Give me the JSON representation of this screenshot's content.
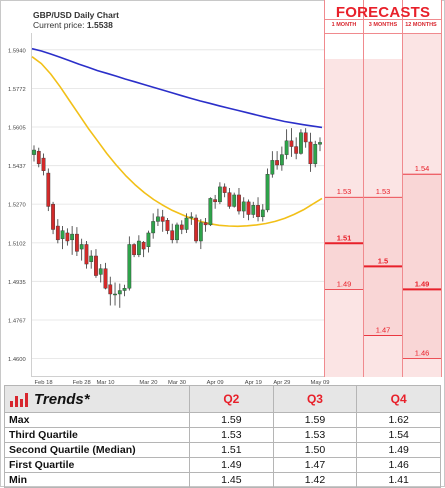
{
  "header": {
    "title": "GBP/USD Daily Chart",
    "price_label": "Current price:",
    "price_value": "1.5538"
  },
  "forecasts": {
    "title": "FORECASTS",
    "columns": [
      "1 MONTH",
      "3 MONTHS",
      "12 MONTHS"
    ],
    "fill_color": "#fbe4e4",
    "accent_color": "#e8202a"
  },
  "trends_table": {
    "title": "Trends*",
    "icon": "bar-chart-icon",
    "headers": [
      "Q2",
      "Q3",
      "Q4"
    ],
    "rows": [
      {
        "label": "Max",
        "values": [
          "1.59",
          "1.59",
          "1.62"
        ]
      },
      {
        "label": "Third Quartile",
        "values": [
          "1.53",
          "1.53",
          "1.54"
        ]
      },
      {
        "label": "Second Quartile (Median)",
        "values": [
          "1.51",
          "1.50",
          "1.49"
        ]
      },
      {
        "label": "First Quartile",
        "values": [
          "1.49",
          "1.47",
          "1.46"
        ]
      },
      {
        "label": "Min",
        "values": [
          "1.45",
          "1.42",
          "1.41"
        ]
      }
    ]
  },
  "chart_data": [
    {
      "type": "candlestick",
      "title": "GBP/USD Daily Chart",
      "subtitle": "Current price: 1.5538",
      "x_tick_labels": [
        "Feb 18",
        "Feb 28",
        "Mar 10",
        "Mar 20",
        "Mar 30",
        "Apr 09",
        "Apr 19",
        "Apr 29",
        "May 09"
      ],
      "y_ticks": [
        1.46,
        1.4767,
        1.4935,
        1.5102,
        1.527,
        1.5437,
        1.5605,
        1.5772,
        1.594
      ],
      "ylim": [
        1.455,
        1.6
      ],
      "up_color": "#2ea34a",
      "down_color": "#d32a2a",
      "candles": [
        {
          "date": "Feb 14",
          "o": 1.5485,
          "h": 1.5525,
          "l": 1.5455,
          "c": 1.5505
        },
        {
          "date": "Feb 15",
          "o": 1.55,
          "h": 1.5515,
          "l": 1.543,
          "c": 1.5445
        },
        {
          "date": "Feb 18",
          "o": 1.547,
          "h": 1.549,
          "l": 1.5395,
          "c": 1.5415
        },
        {
          "date": "Feb 19",
          "o": 1.5405,
          "h": 1.5425,
          "l": 1.524,
          "c": 1.526
        },
        {
          "date": "Feb 20",
          "o": 1.527,
          "h": 1.528,
          "l": 1.514,
          "c": 1.516
        },
        {
          "date": "Feb 21",
          "o": 1.5175,
          "h": 1.5205,
          "l": 1.51,
          "c": 1.5115
        },
        {
          "date": "Feb 22",
          "o": 1.512,
          "h": 1.5175,
          "l": 1.5075,
          "c": 1.5155
        },
        {
          "date": "Feb 25",
          "o": 1.5145,
          "h": 1.5165,
          "l": 1.509,
          "c": 1.511
        },
        {
          "date": "Feb 26",
          "o": 1.5115,
          "h": 1.5175,
          "l": 1.505,
          "c": 1.514
        },
        {
          "date": "Feb 27",
          "o": 1.514,
          "h": 1.517,
          "l": 1.5045,
          "c": 1.5065
        },
        {
          "date": "Feb 28",
          "o": 1.5075,
          "h": 1.512,
          "l": 1.5025,
          "c": 1.5095
        },
        {
          "date": "Mar 01",
          "o": 1.5095,
          "h": 1.511,
          "l": 1.499,
          "c": 1.501
        },
        {
          "date": "Mar 04",
          "o": 1.502,
          "h": 1.507,
          "l": 1.499,
          "c": 1.5045
        },
        {
          "date": "Mar 05",
          "o": 1.5045,
          "h": 1.5075,
          "l": 1.495,
          "c": 1.496
        },
        {
          "date": "Mar 06",
          "o": 1.4965,
          "h": 1.501,
          "l": 1.493,
          "c": 1.499
        },
        {
          "date": "Mar 07",
          "o": 1.499,
          "h": 1.5015,
          "l": 1.49,
          "c": 1.4905
        },
        {
          "date": "Mar 08",
          "o": 1.492,
          "h": 1.4955,
          "l": 1.483,
          "c": 1.488
        },
        {
          "date": "Mar 11",
          "o": 1.488,
          "h": 1.493,
          "l": 1.483,
          "c": 1.488
        },
        {
          "date": "Mar 12",
          "o": 1.488,
          "h": 1.4925,
          "l": 1.482,
          "c": 1.4895
        },
        {
          "date": "Mar 13",
          "o": 1.4895,
          "h": 1.492,
          "l": 1.487,
          "c": 1.4905
        },
        {
          "date": "Mar 14",
          "o": 1.4905,
          "h": 1.513,
          "l": 1.4895,
          "c": 1.5095
        },
        {
          "date": "Mar 15",
          "o": 1.5095,
          "h": 1.51,
          "l": 1.504,
          "c": 1.505
        },
        {
          "date": "Mar 18",
          "o": 1.505,
          "h": 1.5135,
          "l": 1.504,
          "c": 1.511
        },
        {
          "date": "Mar 19",
          "o": 1.5105,
          "h": 1.511,
          "l": 1.504,
          "c": 1.5075
        },
        {
          "date": "Mar 20",
          "o": 1.5085,
          "h": 1.5155,
          "l": 1.506,
          "c": 1.5145
        },
        {
          "date": "Mar 21",
          "o": 1.5145,
          "h": 1.523,
          "l": 1.512,
          "c": 1.5195
        },
        {
          "date": "Mar 22",
          "o": 1.5195,
          "h": 1.525,
          "l": 1.5175,
          "c": 1.5215
        },
        {
          "date": "Mar 25",
          "o": 1.5215,
          "h": 1.5245,
          "l": 1.515,
          "c": 1.5195
        },
        {
          "date": "Mar 26",
          "o": 1.52,
          "h": 1.521,
          "l": 1.514,
          "c": 1.5155
        },
        {
          "date": "Mar 27",
          "o": 1.5155,
          "h": 1.5185,
          "l": 1.51,
          "c": 1.5115
        },
        {
          "date": "Mar 28",
          "o": 1.5115,
          "h": 1.519,
          "l": 1.51,
          "c": 1.518
        },
        {
          "date": "Mar 29",
          "o": 1.518,
          "h": 1.52,
          "l": 1.514,
          "c": 1.516
        },
        {
          "date": "Apr 01",
          "o": 1.516,
          "h": 1.523,
          "l": 1.5145,
          "c": 1.521
        },
        {
          "date": "Apr 02",
          "o": 1.521,
          "h": 1.5235,
          "l": 1.518,
          "c": 1.5215
        },
        {
          "date": "Apr 03",
          "o": 1.521,
          "h": 1.5225,
          "l": 1.51,
          "c": 1.511
        },
        {
          "date": "Apr 04",
          "o": 1.511,
          "h": 1.5205,
          "l": 1.5075,
          "c": 1.519
        },
        {
          "date": "Apr 05",
          "o": 1.519,
          "h": 1.521,
          "l": 1.515,
          "c": 1.518
        },
        {
          "date": "Apr 08",
          "o": 1.518,
          "h": 1.53,
          "l": 1.5175,
          "c": 1.5295
        },
        {
          "date": "Apr 09",
          "o": 1.529,
          "h": 1.531,
          "l": 1.525,
          "c": 1.528
        },
        {
          "date": "Apr 10",
          "o": 1.528,
          "h": 1.5365,
          "l": 1.527,
          "c": 1.5345
        },
        {
          "date": "Apr 11",
          "o": 1.5345,
          "h": 1.536,
          "l": 1.53,
          "c": 1.532
        },
        {
          "date": "Apr 12",
          "o": 1.532,
          "h": 1.534,
          "l": 1.525,
          "c": 1.526
        },
        {
          "date": "Apr 15",
          "o": 1.526,
          "h": 1.532,
          "l": 1.5255,
          "c": 1.531
        },
        {
          "date": "Apr 16",
          "o": 1.531,
          "h": 1.534,
          "l": 1.5225,
          "c": 1.524
        },
        {
          "date": "Apr 17",
          "o": 1.524,
          "h": 1.53,
          "l": 1.521,
          "c": 1.528
        },
        {
          "date": "Apr 18",
          "o": 1.528,
          "h": 1.529,
          "l": 1.52,
          "c": 1.5225
        },
        {
          "date": "Apr 19",
          "o": 1.5225,
          "h": 1.528,
          "l": 1.521,
          "c": 1.5265
        },
        {
          "date": "Apr 22",
          "o": 1.5265,
          "h": 1.53,
          "l": 1.5195,
          "c": 1.5215
        },
        {
          "date": "Apr 23",
          "o": 1.5215,
          "h": 1.527,
          "l": 1.5195,
          "c": 1.5245
        },
        {
          "date": "Apr 24",
          "o": 1.5245,
          "h": 1.5425,
          "l": 1.5235,
          "c": 1.54
        },
        {
          "date": "Apr 25",
          "o": 1.54,
          "h": 1.55,
          "l": 1.5385,
          "c": 1.546
        },
        {
          "date": "Apr 26",
          "o": 1.546,
          "h": 1.55,
          "l": 1.542,
          "c": 1.544
        },
        {
          "date": "Apr 29",
          "o": 1.544,
          "h": 1.552,
          "l": 1.5415,
          "c": 1.5485
        },
        {
          "date": "Apr 30",
          "o": 1.5485,
          "h": 1.5595,
          "l": 1.5465,
          "c": 1.5545
        },
        {
          "date": "May 01",
          "o": 1.5545,
          "h": 1.56,
          "l": 1.5475,
          "c": 1.552
        },
        {
          "date": "May 02",
          "o": 1.552,
          "h": 1.556,
          "l": 1.5465,
          "c": 1.549
        },
        {
          "date": "May 03",
          "o": 1.549,
          "h": 1.5595,
          "l": 1.5485,
          "c": 1.558
        },
        {
          "date": "May 06",
          "o": 1.558,
          "h": 1.56,
          "l": 1.5515,
          "c": 1.554
        },
        {
          "date": "May 07",
          "o": 1.554,
          "h": 1.558,
          "l": 1.541,
          "c": 1.5445
        },
        {
          "date": "May 08",
          "o": 1.5445,
          "h": 1.5545,
          "l": 1.543,
          "c": 1.553
        },
        {
          "date": "May 09",
          "o": 1.553,
          "h": 1.556,
          "l": 1.55,
          "c": 1.5538
        }
      ],
      "moving_averages": [
        {
          "color": "#2b2fc9",
          "values": [
            1.5945,
            1.5935,
            1.5922,
            1.5908,
            1.5893,
            1.5878,
            1.5864,
            1.585,
            1.5838,
            1.5826,
            1.5813,
            1.5801,
            1.5789,
            1.5777,
            1.5765,
            1.5753,
            1.5741,
            1.5729,
            1.5718,
            1.5708,
            1.5697,
            1.5687,
            1.5677,
            1.5667,
            1.5657,
            1.5647,
            1.5638,
            1.5629,
            1.5622,
            1.5615,
            1.5609,
            1.5603
          ]
        },
        {
          "color": "#f2c018",
          "values": [
            1.591,
            1.588,
            1.5835,
            1.578,
            1.572,
            1.566,
            1.56,
            1.5545,
            1.549,
            1.544,
            1.5395,
            1.5355,
            1.532,
            1.529,
            1.5265,
            1.5243,
            1.5225,
            1.5208,
            1.5195,
            1.5185,
            1.5178,
            1.5175,
            1.5174,
            1.5176,
            1.518,
            1.5186,
            1.5195,
            1.5208,
            1.5225,
            1.5245,
            1.527,
            1.5295
          ]
        }
      ]
    },
    {
      "type": "forecast-bands",
      "title": "FORECASTS",
      "categories": [
        "1 MONTH",
        "3 MONTHS",
        "12 MONTHS"
      ],
      "ylim": [
        1.455,
        1.6
      ],
      "bands": [
        {
          "label": "1 MONTH",
          "min": 1.45,
          "q1": 1.49,
          "median": 1.51,
          "q3": 1.53,
          "max": 1.59
        },
        {
          "label": "3 MONTHS",
          "min": 1.42,
          "q1": 1.47,
          "median": 1.5,
          "q3": 1.53,
          "max": 1.59
        },
        {
          "label": "12 MONTHS",
          "min": 1.41,
          "q1": 1.46,
          "median": 1.49,
          "q3": 1.54,
          "max": 1.62
        }
      ],
      "value_labels": [
        {
          "col": 0,
          "value": 1.53,
          "text": "1.53",
          "bold": false
        },
        {
          "col": 0,
          "value": 1.51,
          "text": "1.51",
          "bold": true
        },
        {
          "col": 0,
          "value": 1.49,
          "text": "1.49",
          "bold": false
        },
        {
          "col": 1,
          "value": 1.53,
          "text": "1.53",
          "bold": false
        },
        {
          "col": 1,
          "value": 1.5,
          "text": "1.5",
          "bold": true
        },
        {
          "col": 1,
          "value": 1.47,
          "text": "1.47",
          "bold": false
        },
        {
          "col": 2,
          "value": 1.54,
          "text": "1.54",
          "bold": false
        },
        {
          "col": 2,
          "value": 1.49,
          "text": "1.49",
          "bold": true
        },
        {
          "col": 2,
          "value": 1.46,
          "text": "1.46",
          "bold": false
        }
      ]
    }
  ]
}
